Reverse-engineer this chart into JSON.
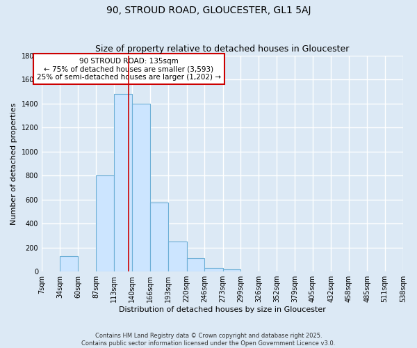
{
  "title": "90, STROUD ROAD, GLOUCESTER, GL1 5AJ",
  "subtitle": "Size of property relative to detached houses in Gloucester",
  "xlabel": "Distribution of detached houses by size in Gloucester",
  "ylabel": "Number of detached properties",
  "bin_edges": [
    7,
    34,
    60,
    87,
    113,
    140,
    166,
    193,
    220,
    246,
    273,
    299,
    326,
    352,
    379,
    405,
    432,
    458,
    485,
    511,
    538
  ],
  "bar_heights": [
    0,
    130,
    0,
    800,
    1480,
    1400,
    575,
    250,
    110,
    30,
    20,
    0,
    0,
    0,
    0,
    0,
    0,
    0,
    0,
    0
  ],
  "bar_color": "#cce5ff",
  "bar_edge_color": "#6baed6",
  "bar_linewidth": 0.8,
  "vline_x": 135,
  "vline_color": "#cc0000",
  "vline_linewidth": 1.2,
  "annotation_title": "90 STROUD ROAD: 135sqm",
  "annotation_line1": "← 75% of detached houses are smaller (3,593)",
  "annotation_line2": "25% of semi-detached houses are larger (1,202) →",
  "annotation_box_color": "#ffffff",
  "annotation_box_edge": "#cc0000",
  "ylim": [
    0,
    1800
  ],
  "yticks": [
    0,
    200,
    400,
    600,
    800,
    1000,
    1200,
    1400,
    1600,
    1800
  ],
  "background_color": "#dce9f5",
  "grid_color": "#ffffff",
  "footnote1": "Contains HM Land Registry data © Crown copyright and database right 2025.",
  "footnote2": "Contains public sector information licensed under the Open Government Licence v3.0.",
  "title_fontsize": 10,
  "subtitle_fontsize": 9,
  "tick_fontsize": 7,
  "ylabel_fontsize": 8,
  "xlabel_fontsize": 8,
  "annotation_fontsize": 7.5
}
